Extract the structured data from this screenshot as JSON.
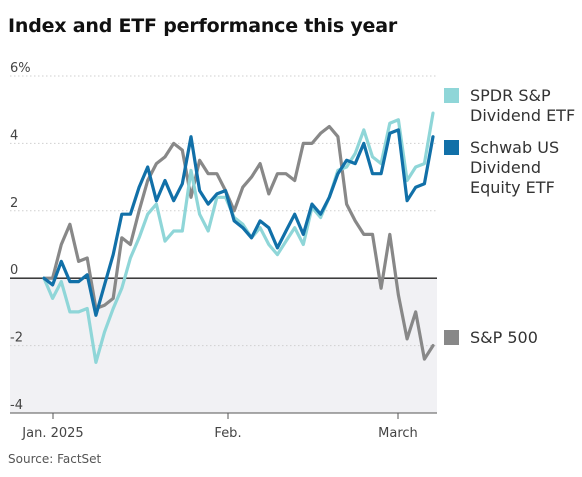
{
  "chart_data": {
    "type": "line",
    "title": "Index and ETF performance this year",
    "source": "Source: FactSet",
    "ylim": [
      -4,
      6
    ],
    "y_ticks": [
      6,
      4,
      2,
      0,
      -2,
      -4
    ],
    "y_tick_labels": [
      "6%",
      "4",
      "2",
      "0",
      "-2",
      "-4"
    ],
    "x_ticks": [
      "Jan. 2025",
      "Feb.",
      "March"
    ],
    "legend_position": "right",
    "grid": true,
    "series": [
      {
        "name": "SPDR S&P Dividend ETF",
        "color": "#8fd6d8",
        "legend_lines": [
          "SPDR S&P",
          "Dividend ETF"
        ],
        "values": [
          0.0,
          -0.6,
          -0.1,
          -1.0,
          -1.0,
          -0.9,
          -2.5,
          -1.6,
          -0.9,
          -0.3,
          0.6,
          1.2,
          1.9,
          2.2,
          1.1,
          1.4,
          1.4,
          3.2,
          1.9,
          1.4,
          2.4,
          2.4,
          1.8,
          1.6,
          1.2,
          1.5,
          1.0,
          0.7,
          1.1,
          1.5,
          1.0,
          2.1,
          1.8,
          2.4,
          3.2,
          3.3,
          3.7,
          4.4,
          3.6,
          3.4,
          4.6,
          4.7,
          2.9,
          3.3,
          3.4,
          4.9
        ]
      },
      {
        "name": "Schwab US Dividend Equity ETF",
        "color": "#1170a8",
        "legend_lines": [
          "Schwab US",
          "Dividend",
          "Equity ETF"
        ],
        "values": [
          0.0,
          -0.2,
          0.5,
          -0.1,
          -0.1,
          0.1,
          -1.1,
          -0.2,
          0.7,
          1.9,
          1.9,
          2.7,
          3.3,
          2.3,
          2.9,
          2.3,
          2.8,
          4.2,
          2.6,
          2.2,
          2.5,
          2.6,
          1.7,
          1.5,
          1.2,
          1.7,
          1.5,
          0.9,
          1.4,
          1.9,
          1.3,
          2.2,
          1.9,
          2.4,
          3.1,
          3.5,
          3.4,
          4.0,
          3.1,
          3.1,
          4.3,
          4.4,
          2.3,
          2.7,
          2.8,
          4.2
        ]
      },
      {
        "name": "S&P 500",
        "color": "#888888",
        "legend_lines": [
          "S&P 500"
        ],
        "values": [
          0.0,
          0.0,
          1.0,
          1.6,
          0.5,
          0.6,
          -0.9,
          -0.8,
          -0.6,
          1.2,
          1.0,
          2.0,
          2.9,
          3.4,
          3.6,
          4.0,
          3.8,
          2.4,
          3.5,
          3.1,
          3.1,
          2.6,
          2.0,
          2.7,
          3.0,
          3.4,
          2.5,
          3.1,
          3.1,
          2.9,
          4.0,
          4.0,
          4.3,
          4.5,
          4.2,
          2.2,
          1.7,
          1.3,
          1.3,
          -0.3,
          1.3,
          -0.5,
          -1.8,
          -1.0,
          -2.4,
          -2.0
        ]
      }
    ]
  }
}
